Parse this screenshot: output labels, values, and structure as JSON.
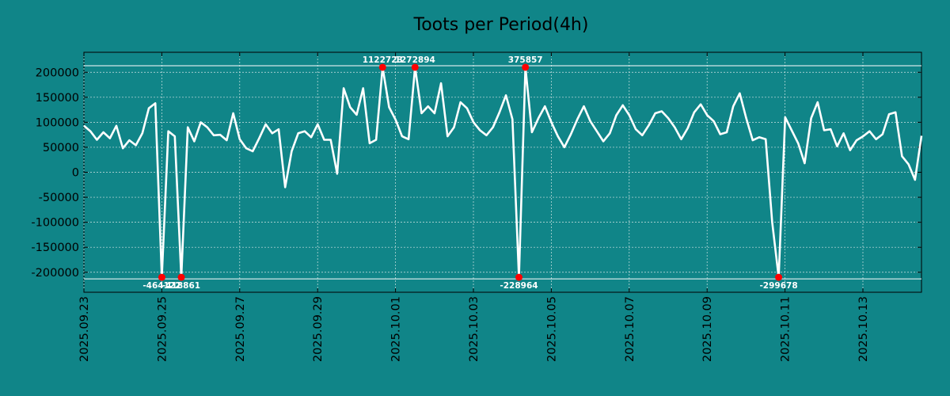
{
  "chart_data": {
    "type": "line",
    "title": "Toots per Period(4h)",
    "xlabel": "",
    "ylabel": "",
    "ylim": [
      -240000,
      240000
    ],
    "grid": true,
    "clip_limits": {
      "upper": 210000,
      "lower": -210000
    },
    "y_ticks": [
      200000,
      150000,
      100000,
      50000,
      0,
      -50000,
      -100000,
      -150000,
      -200000
    ],
    "y_tick_labels": [
      "200000",
      "150000",
      "100000",
      "50000",
      "0",
      "-50000",
      "-100000",
      "-150000",
      "-200000"
    ],
    "x_tick_labels": [
      "2025.09.23",
      "2025.09.25",
      "2025.09.27",
      "2025.09.29",
      "2025.10.01",
      "2025.10.03",
      "2025.10.05",
      "2025.10.07",
      "2025.10.09",
      "2025.10.11",
      "2025.10.13"
    ],
    "x_tick_days": [
      0,
      2,
      4,
      6,
      8,
      10,
      12,
      14,
      16,
      18,
      20
    ],
    "period_days": 0.1667,
    "series": [
      {
        "name": "Toots",
        "color": "#ffffff",
        "values": [
          93000,
          82000,
          65000,
          80000,
          68000,
          93000,
          48000,
          64000,
          54000,
          78000,
          128000,
          138000,
          -210000,
          82000,
          72000,
          -210000,
          90000,
          62000,
          100000,
          90000,
          74000,
          75000,
          64000,
          118000,
          66000,
          48000,
          42000,
          68000,
          96000,
          78000,
          86000,
          -30000,
          42000,
          78000,
          82000,
          70000,
          96000,
          65000,
          65000,
          -3000,
          168000,
          130000,
          115000,
          168000,
          58000,
          65000,
          210000,
          130000,
          105000,
          72000,
          66000,
          210000,
          118000,
          132000,
          118000,
          178000,
          72000,
          90000,
          140000,
          128000,
          100000,
          84000,
          74000,
          90000,
          120000,
          154000,
          106000,
          -210000,
          210000,
          80000,
          108000,
          132000,
          100000,
          72000,
          50000,
          76000,
          106000,
          132000,
          102000,
          82000,
          62000,
          78000,
          114000,
          134000,
          114000,
          86000,
          74000,
          94000,
          118000,
          122000,
          108000,
          90000,
          66000,
          88000,
          120000,
          136000,
          114000,
          102000,
          76000,
          80000,
          132000,
          158000,
          108000,
          64000,
          70000,
          66000,
          -100000,
          -210000,
          110000,
          84000,
          58000,
          18000,
          108000,
          140000,
          84000,
          86000,
          52000,
          78000,
          44000,
          64000,
          72000,
          82000,
          66000,
          76000,
          116000,
          120000,
          32000,
          16000,
          -15000,
          73000
        ]
      }
    ],
    "outliers": [
      {
        "index": 12,
        "label": "-464122"
      },
      {
        "index": 15,
        "label": "-418861"
      },
      {
        "index": 46,
        "label": "1122723"
      },
      {
        "index": 51,
        "label": "1272894"
      },
      {
        "index": 67,
        "label": "-228964"
      },
      {
        "index": 68,
        "label": "375857"
      },
      {
        "index": 107,
        "label": "-299678"
      }
    ]
  }
}
